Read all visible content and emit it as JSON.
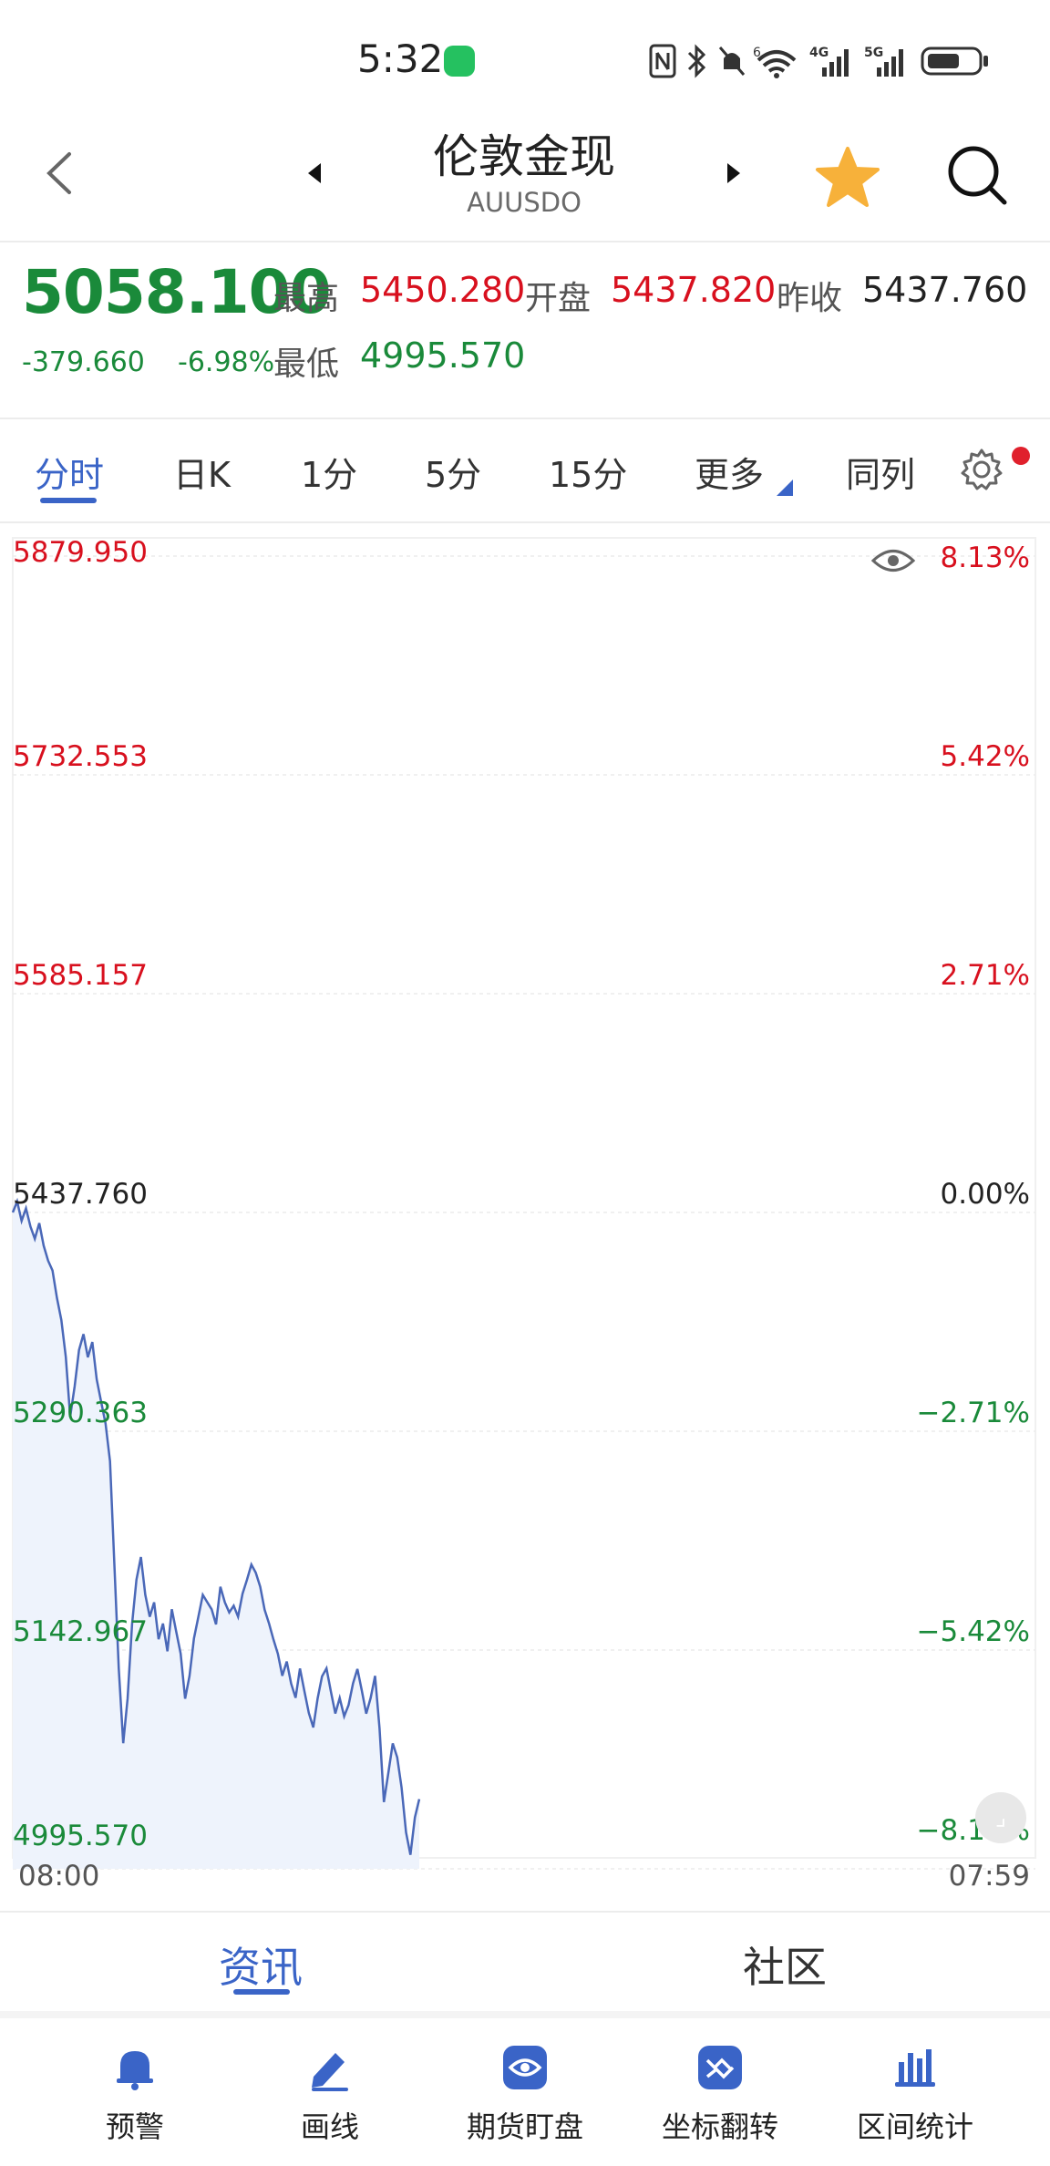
{
  "status_bar": {
    "time": "5:32"
  },
  "header": {
    "title": "伦敦金现",
    "subtitle": "AUUSDO"
  },
  "quote": {
    "price": "5058.100",
    "change": "-379.660",
    "change_pct": "-6.98%",
    "high_label": "最高",
    "high": "5450.280",
    "open_label": "开盘",
    "open": "5437.820",
    "prev_close_label": "昨收",
    "prev_close": "5437.760",
    "low_label": "最低",
    "low": "4995.570"
  },
  "tabs": [
    "分时",
    "日K",
    "1分",
    "5分",
    "15分",
    "更多",
    "同列"
  ],
  "chart_data": {
    "type": "area",
    "y_labels_left": [
      "5879.950",
      "5732.553",
      "5585.157",
      "5437.760",
      "5290.363",
      "5142.967",
      "4995.570"
    ],
    "y_labels_right": [
      "8.13%",
      "5.42%",
      "2.71%",
      "0.00%",
      "−2.71%",
      "−5.42%",
      "−8.13%"
    ],
    "ylim": [
      4995.57,
      5879.95
    ],
    "x_start_label": "08:00",
    "x_end_label": "07:59",
    "grid": true,
    "line_color": "#4a68b8",
    "fill_color": "#eef3fc",
    "series": [
      {
        "values": [
          5437.76,
          5445.2,
          5432.1,
          5440.5,
          5428.3,
          5420.0,
          5430.6,
          5415.4,
          5405.2,
          5398.7,
          5380.1,
          5365.3,
          5340.4,
          5300.2,
          5320.6,
          5345.1,
          5355.8,
          5340.2,
          5350.5,
          5325.3,
          5310.1,
          5295.6,
          5270.2,
          5200.4,
          5130.5,
          5080.2,
          5110.3,
          5160.5,
          5190.3,
          5205.6,
          5180.2,
          5165.4,
          5175.1,
          5150.3,
          5160.8,
          5142.1,
          5170.5,
          5155.2,
          5140.6,
          5110.2,
          5125.4,
          5150.8,
          5165.2,
          5180.1,
          5175.3,
          5170.4,
          5160.2,
          5185.6,
          5175.1,
          5168.3,
          5172.8,
          5165.4,
          5180.9,
          5190.2,
          5200.5,
          5195.1,
          5185.6,
          5170.2,
          5160.8,
          5150.1,
          5140.3,
          5125.6,
          5135.2,
          5120.4,
          5110.8,
          5130.5,
          5115.2,
          5100.6,
          5090.8,
          5110.4,
          5125.2,
          5130.6,
          5115.1,
          5100.2,
          5110.6,
          5098.3,
          5105.8,
          5120.4,
          5130.2,
          5115.6,
          5100.1,
          5110.8,
          5125.5,
          5090.2,
          5040.5,
          5060.3,
          5080.1,
          5070.6,
          5050.2,
          5020.1,
          5005.0,
          5030.2,
          5042.5
        ]
      }
    ]
  },
  "chart_tabs": {
    "news": "资讯",
    "community": "社区"
  },
  "toolbar": [
    {
      "label": "预警",
      "icon": "bell-icon"
    },
    {
      "label": "画线",
      "icon": "pen-icon"
    },
    {
      "label": "期货盯盘",
      "icon": "eye-icon"
    },
    {
      "label": "坐标翻转",
      "icon": "flip-axis-icon"
    },
    {
      "label": "区间统计",
      "icon": "bar-stats-icon"
    }
  ]
}
